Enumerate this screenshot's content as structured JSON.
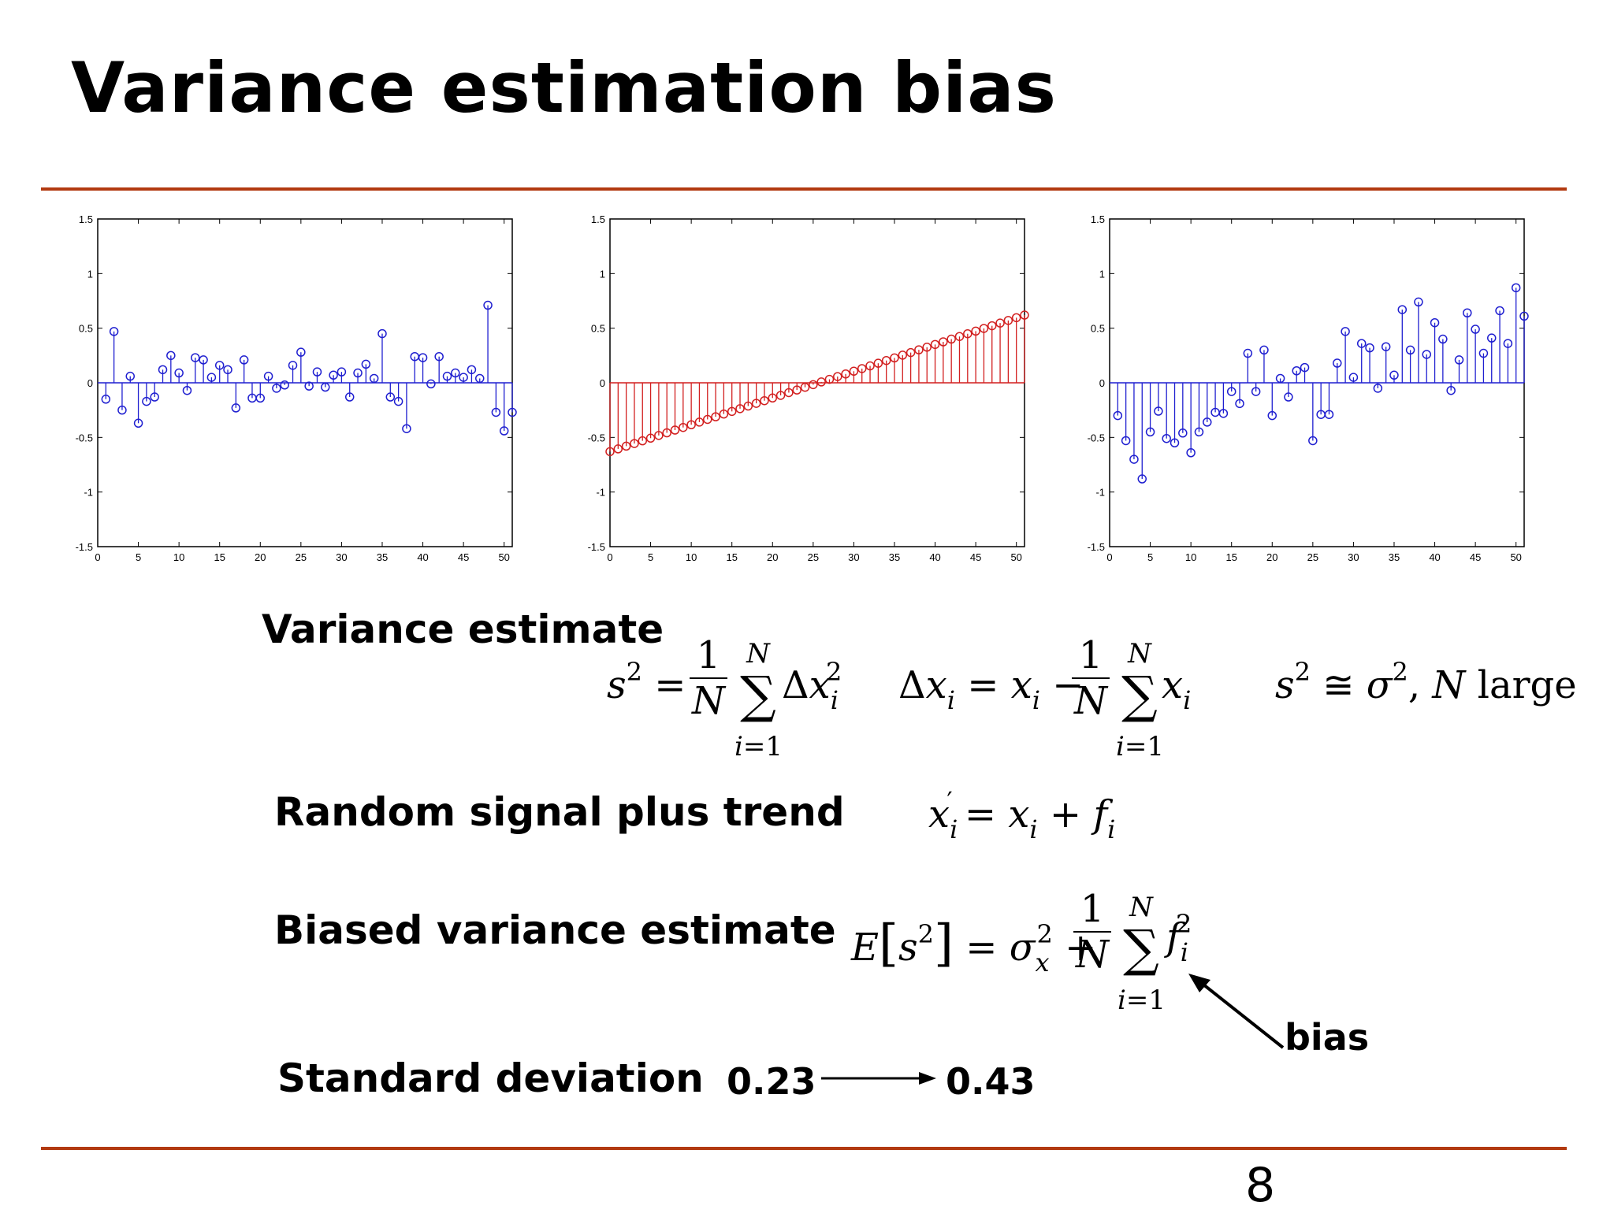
{
  "slide": {
    "title": "Variance estimation bias",
    "page_number": "8",
    "rule_color": "#b23a10"
  },
  "labels": {
    "variance_estimate": "Variance estimate",
    "random_signal": "Random signal plus trend",
    "biased_estimate": "Biased variance estimate",
    "std_dev": "Standard deviation",
    "std_before": "0.23",
    "std_after": "0.43",
    "bias": "bias"
  },
  "equations": {
    "variance": "s² = (1/N) Σ_{i=1}^{N} Δx_i²",
    "deviation": "Δx_i = x_i − (1/N) Σ_{i=1}^{N} x_i",
    "large_n": "s² ≅ σ², N large",
    "trend": "x'_i = x_i + f_i",
    "expectation": "E[s²] = σ_x² + (1/N) Σ_{i=1}^{N} f_i²"
  },
  "chart_data": [
    {
      "type": "stem",
      "color": "#1f1fd0",
      "xlim": [
        0,
        51
      ],
      "ylim": [
        -1.5,
        1.5
      ],
      "xticks": [
        0,
        5,
        10,
        15,
        20,
        25,
        30,
        35,
        40,
        45,
        50
      ],
      "yticks": [
        -1.5,
        -1,
        -0.5,
        0,
        0.5,
        1,
        1.5
      ],
      "x": [
        1,
        2,
        3,
        4,
        5,
        6,
        7,
        8,
        9,
        10,
        11,
        12,
        13,
        14,
        15,
        16,
        17,
        18,
        19,
        20,
        21,
        22,
        23,
        24,
        25,
        26,
        27,
        28,
        29,
        30,
        31,
        32,
        33,
        34,
        35,
        36,
        37,
        38,
        39,
        40,
        41,
        42,
        43,
        44,
        45,
        46,
        47,
        48,
        49,
        50,
        51
      ],
      "values": [
        -0.15,
        0.47,
        -0.25,
        0.06,
        -0.37,
        -0.17,
        -0.13,
        0.12,
        0.25,
        0.09,
        -0.07,
        0.23,
        0.21,
        0.05,
        0.16,
        0.12,
        -0.23,
        0.21,
        -0.14,
        -0.14,
        0.06,
        -0.05,
        -0.02,
        0.16,
        0.28,
        -0.03,
        0.1,
        -0.04,
        0.07,
        0.1,
        -0.13,
        0.09,
        0.17,
        0.04,
        0.45,
        -0.13,
        -0.17,
        -0.42,
        0.24,
        0.23,
        -0.01,
        0.24,
        0.06,
        0.09,
        0.05,
        0.12,
        0.04,
        0.71,
        -0.27,
        -0.44,
        -0.27
      ]
    },
    {
      "type": "stem",
      "color": "#d21f1f",
      "xlim": [
        0,
        51
      ],
      "ylim": [
        -1.5,
        1.5
      ],
      "xticks": [
        0,
        5,
        10,
        15,
        20,
        25,
        30,
        35,
        40,
        45,
        50
      ],
      "yticks": [
        -1.5,
        -1,
        -0.5,
        0,
        0.5,
        1,
        1.5
      ],
      "x": [
        0,
        1,
        2,
        3,
        4,
        5,
        6,
        7,
        8,
        9,
        10,
        11,
        12,
        13,
        14,
        15,
        16,
        17,
        18,
        19,
        20,
        21,
        22,
        23,
        24,
        25,
        26,
        27,
        28,
        29,
        30,
        31,
        32,
        33,
        34,
        35,
        36,
        37,
        38,
        39,
        40,
        41,
        42,
        43,
        44,
        45,
        46,
        47,
        48,
        49,
        50,
        51
      ],
      "values": [
        -0.63,
        -0.605,
        -0.58,
        -0.556,
        -0.531,
        -0.507,
        -0.482,
        -0.458,
        -0.433,
        -0.409,
        -0.384,
        -0.36,
        -0.335,
        -0.311,
        -0.286,
        -0.262,
        -0.237,
        -0.213,
        -0.188,
        -0.164,
        -0.139,
        -0.115,
        -0.09,
        -0.066,
        -0.041,
        -0.017,
        0.008,
        0.032,
        0.057,
        0.081,
        0.106,
        0.13,
        0.155,
        0.179,
        0.204,
        0.228,
        0.253,
        0.277,
        0.302,
        0.326,
        0.351,
        0.375,
        0.4,
        0.424,
        0.449,
        0.473,
        0.498,
        0.522,
        0.547,
        0.571,
        0.596,
        0.62
      ]
    },
    {
      "type": "stem",
      "color": "#1f1fd0",
      "xlim": [
        0,
        51
      ],
      "ylim": [
        -1.5,
        1.5
      ],
      "xticks": [
        0,
        5,
        10,
        15,
        20,
        25,
        30,
        35,
        40,
        45,
        50
      ],
      "yticks": [
        -1.5,
        -1,
        -0.5,
        0,
        0.5,
        1,
        1.5
      ],
      "x": [
        1,
        2,
        3,
        4,
        5,
        6,
        7,
        8,
        9,
        10,
        11,
        12,
        13,
        14,
        15,
        16,
        17,
        18,
        19,
        20,
        21,
        22,
        23,
        24,
        25,
        26,
        27,
        28,
        29,
        30,
        31,
        32,
        33,
        34,
        35,
        36,
        37,
        38,
        39,
        40,
        41,
        42,
        43,
        44,
        45,
        46,
        47,
        48,
        49,
        50,
        51
      ],
      "values": [
        -0.3,
        -0.53,
        -0.7,
        -0.88,
        -0.45,
        -0.26,
        -0.51,
        -0.55,
        -0.46,
        -0.64,
        -0.45,
        -0.36,
        -0.27,
        -0.28,
        -0.08,
        -0.19,
        0.27,
        -0.08,
        0.3,
        -0.3,
        0.04,
        -0.13,
        0.11,
        0.14,
        -0.53,
        -0.29,
        -0.29,
        0.18,
        0.47,
        0.05,
        0.36,
        0.32,
        -0.05,
        0.33,
        0.07,
        0.67,
        0.3,
        0.74,
        0.26,
        0.55,
        0.4,
        -0.07,
        0.21,
        0.64,
        0.49,
        0.27,
        0.41,
        0.66,
        0.36,
        0.87,
        0.61
      ]
    }
  ]
}
